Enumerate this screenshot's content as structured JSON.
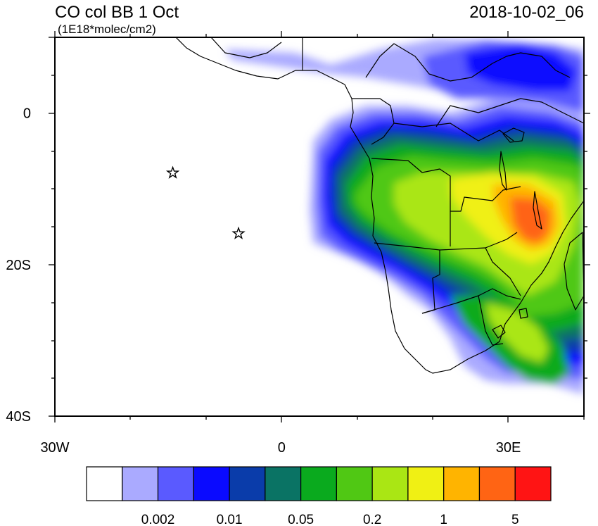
{
  "header": {
    "title": "CO col BB 1 Oct",
    "units": "(1E18*molec/cm2)",
    "datetime": "2018-10-02_06"
  },
  "map": {
    "lon_range": [
      -30,
      40
    ],
    "lat_range": [
      -40,
      10
    ],
    "x_ticks": [
      {
        "value": -30,
        "label": "30W"
      },
      {
        "value": 0,
        "label": "0"
      },
      {
        "value": 30,
        "label": "30E"
      }
    ],
    "y_ticks": [
      {
        "value": 0,
        "label": "0"
      },
      {
        "value": -20,
        "label": "20S"
      },
      {
        "value": -40,
        "label": "40S"
      }
    ],
    "markers": [
      {
        "lon": -14.4,
        "lat": -7.9,
        "symbol": "star"
      },
      {
        "lon": -5.7,
        "lat": -15.9,
        "symbol": "star"
      }
    ]
  },
  "colorbar": {
    "colors": [
      "#ffffff",
      "#aaaaff",
      "#5a5aff",
      "#0a0aff",
      "#0a3caa",
      "#0a7364",
      "#0aaa1e",
      "#50c814",
      "#aae614",
      "#f0f014",
      "#ffb400",
      "#ff6414",
      "#ff1414"
    ],
    "labels": [
      "0.002",
      "0.01",
      "0.05",
      "0.2",
      "1",
      "5"
    ],
    "label_positions": [
      2,
      4,
      6,
      8,
      10,
      12
    ]
  }
}
